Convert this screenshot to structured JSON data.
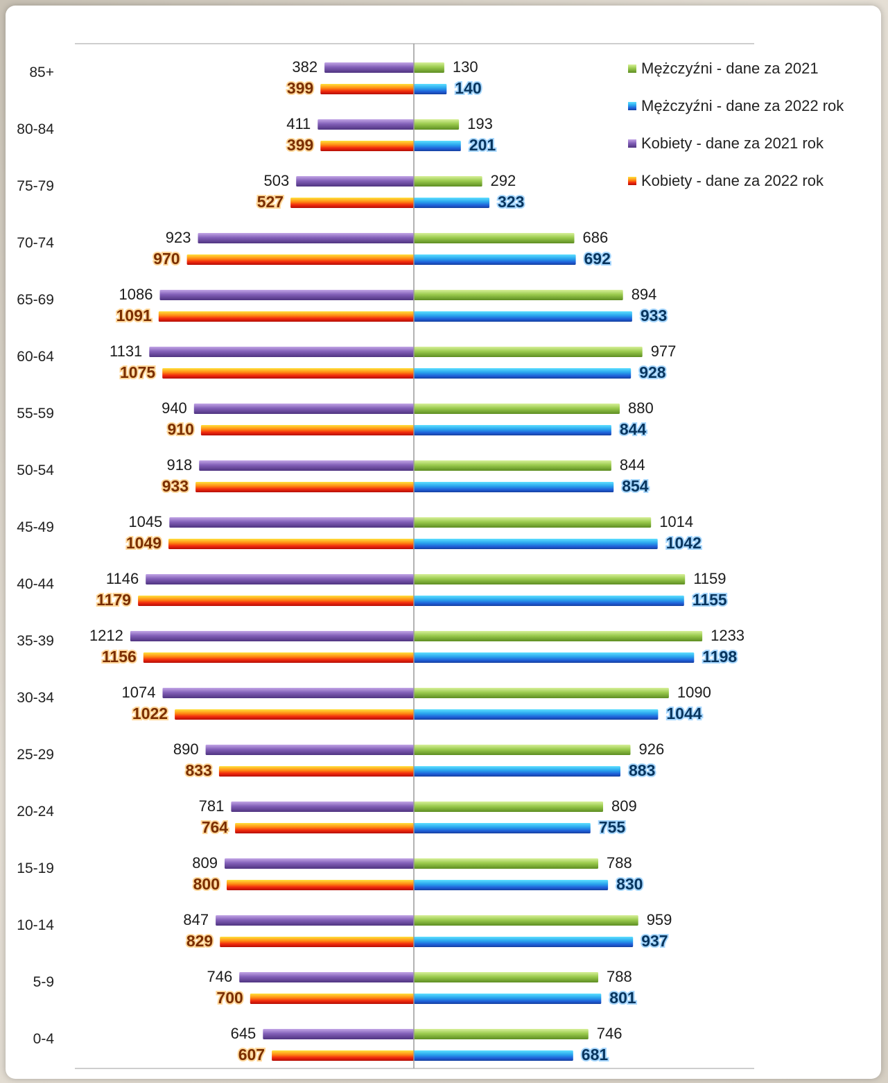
{
  "chart_data": {
    "type": "bar",
    "orientation": "horizontal-diverging",
    "categories": [
      "85+",
      "80-84",
      "75-79",
      "70-74",
      "65-69",
      "60-64",
      "55-59",
      "50-54",
      "45-49",
      "40-44",
      "35-39",
      "30-34",
      "25-29",
      "20-24",
      "15-19",
      "10-14",
      "5-9",
      "0-4"
    ],
    "series": [
      {
        "name": "Kobiety - dane za 2021 rok",
        "side": "left",
        "color": "#7c5aa8",
        "values": [
          382,
          411,
          503,
          923,
          1086,
          1131,
          940,
          918,
          1045,
          1146,
          1212,
          1074,
          890,
          781,
          809,
          847,
          746,
          645
        ]
      },
      {
        "name": "Kobiety - dane za 2022 rok",
        "side": "left",
        "color": "#e8270f",
        "values": [
          399,
          399,
          527,
          970,
          1091,
          1075,
          910,
          933,
          1049,
          1179,
          1156,
          1022,
          833,
          764,
          800,
          829,
          700,
          607
        ]
      },
      {
        "name": "Mężczyźni - dane za 2021",
        "side": "right",
        "color": "#8dc43e",
        "values": [
          130,
          193,
          292,
          686,
          894,
          977,
          880,
          844,
          1014,
          1159,
          1233,
          1090,
          926,
          809,
          788,
          959,
          788,
          746
        ]
      },
      {
        "name": "Mężczyźni - dane za 2022 rok",
        "side": "right",
        "color": "#2a7fd6",
        "values": [
          140,
          201,
          323,
          692,
          933,
          928,
          844,
          854,
          1042,
          1155,
          1198,
          1044,
          883,
          755,
          830,
          937,
          801,
          681
        ]
      }
    ],
    "legend_order": [
      2,
      3,
      0,
      1
    ],
    "legend_position": "top-right",
    "xlim": [
      -1300,
      1300
    ],
    "grid": false,
    "title": "",
    "xlabel": "",
    "ylabel": ""
  }
}
